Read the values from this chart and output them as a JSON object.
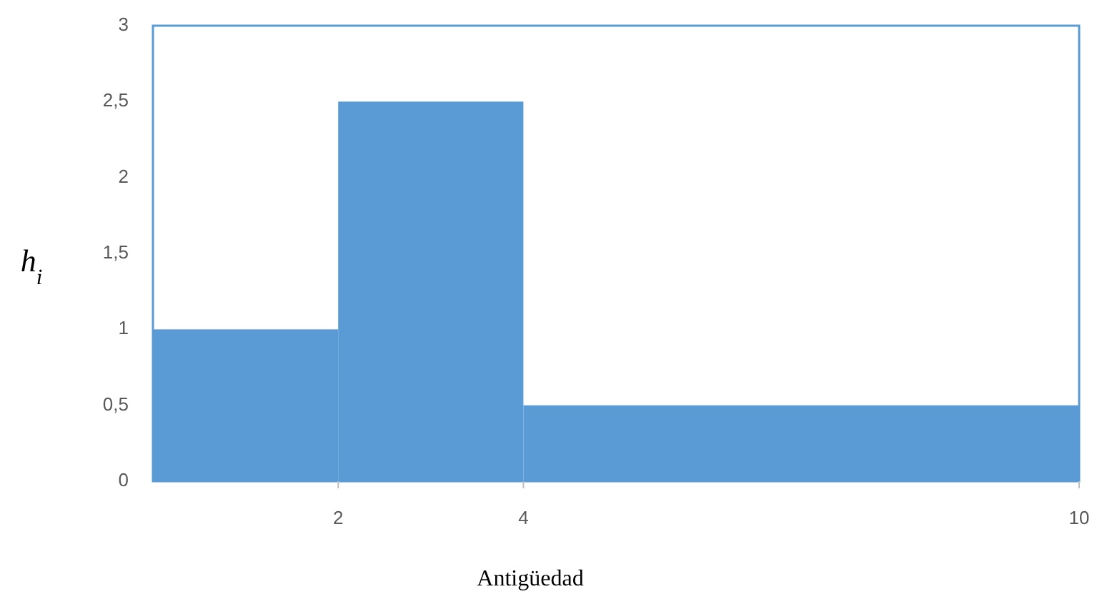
{
  "chart_data": {
    "type": "histogram",
    "xlabel": "Antigüedad",
    "ylabel": "h$_{i}$",
    "bins": [
      0,
      2,
      4,
      10
    ],
    "values": [
      1,
      2.5,
      0.5
    ],
    "color": "#5b9bd5",
    "xlim": [
      0,
      10
    ],
    "xticks": [
      2,
      4,
      10
    ],
    "ylim": [
      0,
      3
    ],
    "yticks": [
      0,
      {
        "value": 0.5,
        "label": "0,5"
      },
      1,
      {
        "value": 1.5,
        "label": "1,5"
      },
      2,
      {
        "value": 2.5,
        "label": "2,5"
      },
      3
    ]
  }
}
